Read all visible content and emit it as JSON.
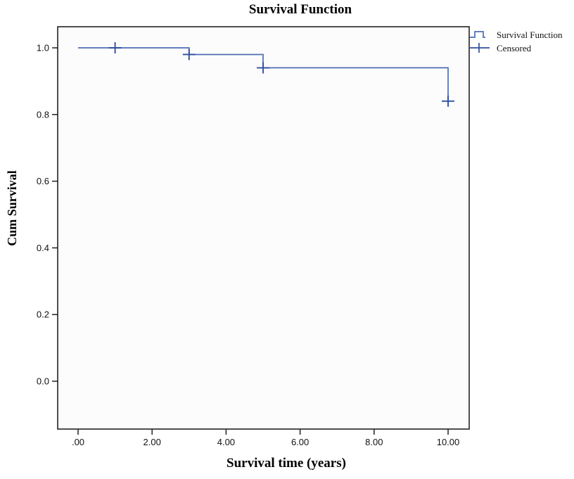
{
  "title": "Survival Function",
  "axes": {
    "x": {
      "label": "Survival time (years)"
    },
    "y": {
      "label": "Cum Survival"
    }
  },
  "legend": [
    {
      "label": "Survival Function",
      "symbol": "step-line"
    },
    {
      "label": "Censored",
      "symbol": "plus"
    }
  ],
  "colors": {
    "line": "#4d6fb4",
    "censor": "#2f4f9f",
    "frame": "#3a3a3a",
    "plot_bg": "#fcfcfc",
    "tick": "#222222"
  },
  "chart_data": {
    "type": "line",
    "subtype": "kaplan-meier-step-function",
    "title": "Survival Function",
    "xlabel": "Survival time (years)",
    "ylabel": "Cum Survival",
    "x_ticks": {
      "values": [
        0,
        2,
        4,
        6,
        8,
        10
      ],
      "labels": [
        ".00",
        "2.00",
        "4.00",
        "6.00",
        "8.00",
        "10.00"
      ]
    },
    "y_ticks": {
      "values": [
        0,
        0.2,
        0.4,
        0.6,
        0.8,
        1.0
      ],
      "labels": [
        "0.0",
        "0.2",
        "0.4",
        "0.6",
        "0.8",
        "1.0"
      ]
    },
    "xlim": [
      -0.55,
      10.57
    ],
    "ylim": [
      -0.143,
      1.063
    ],
    "grid": false,
    "legend_position": "outside-top-right",
    "series": [
      {
        "name": "Survival Function",
        "type": "step",
        "points": [
          [
            0,
            1.0
          ],
          [
            3,
            1.0
          ],
          [
            3,
            0.98
          ],
          [
            5,
            0.98
          ],
          [
            5,
            0.94
          ],
          [
            10,
            0.94
          ],
          [
            10,
            0.84
          ]
        ]
      }
    ],
    "censored_points": [
      [
        1,
        1.0
      ],
      [
        3,
        0.98
      ],
      [
        5,
        0.94
      ],
      [
        10,
        0.84
      ]
    ]
  }
}
